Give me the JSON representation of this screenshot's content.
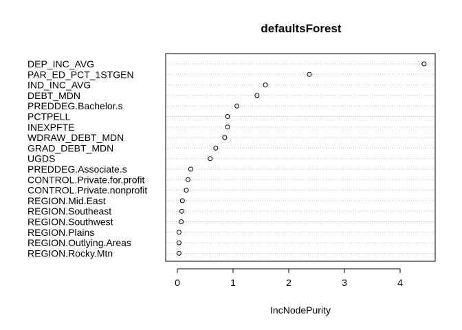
{
  "chart_data": {
    "type": "dotchart",
    "title": "defaultsForest",
    "xlabel": "IncNodePurity",
    "ylabel": "",
    "xlim": [
      -0.2,
      4.5
    ],
    "xticks": [
      0,
      1,
      2,
      3,
      4
    ],
    "grid": "dotted horizontal lines per variable",
    "point_color": "#000000",
    "line_color": "#bebebe",
    "variables": [
      {
        "label": "DEP_INC_AVG",
        "value": 4.43
      },
      {
        "label": "PAR_ED_PCT_1STGEN",
        "value": 2.37
      },
      {
        "label": "IND_INC_AVG",
        "value": 1.58
      },
      {
        "label": "DEBT_MDN",
        "value": 1.43
      },
      {
        "label": "PREDDEG.Bachelor.s",
        "value": 1.07
      },
      {
        "label": "PCTPELL",
        "value": 0.9
      },
      {
        "label": "INEXPFTE",
        "value": 0.9
      },
      {
        "label": "WDRAW_DEBT_MDN",
        "value": 0.85
      },
      {
        "label": "GRAD_DEBT_MDN",
        "value": 0.69
      },
      {
        "label": "UGDS",
        "value": 0.59
      },
      {
        "label": "PREDDEG.Associate.s",
        "value": 0.24
      },
      {
        "label": "CONTROL.Private.for.profit",
        "value": 0.19
      },
      {
        "label": "CONTROL.Private.nonprofit",
        "value": 0.16
      },
      {
        "label": "REGION.Mid.East",
        "value": 0.09
      },
      {
        "label": "REGION.Southeast",
        "value": 0.08
      },
      {
        "label": "REGION.Southwest",
        "value": 0.07
      },
      {
        "label": "REGION.Plains",
        "value": 0.03
      },
      {
        "label": "REGION.Outlying.Areas",
        "value": 0.03
      },
      {
        "label": "REGION.Rocky.Mtn",
        "value": 0.03
      }
    ]
  }
}
